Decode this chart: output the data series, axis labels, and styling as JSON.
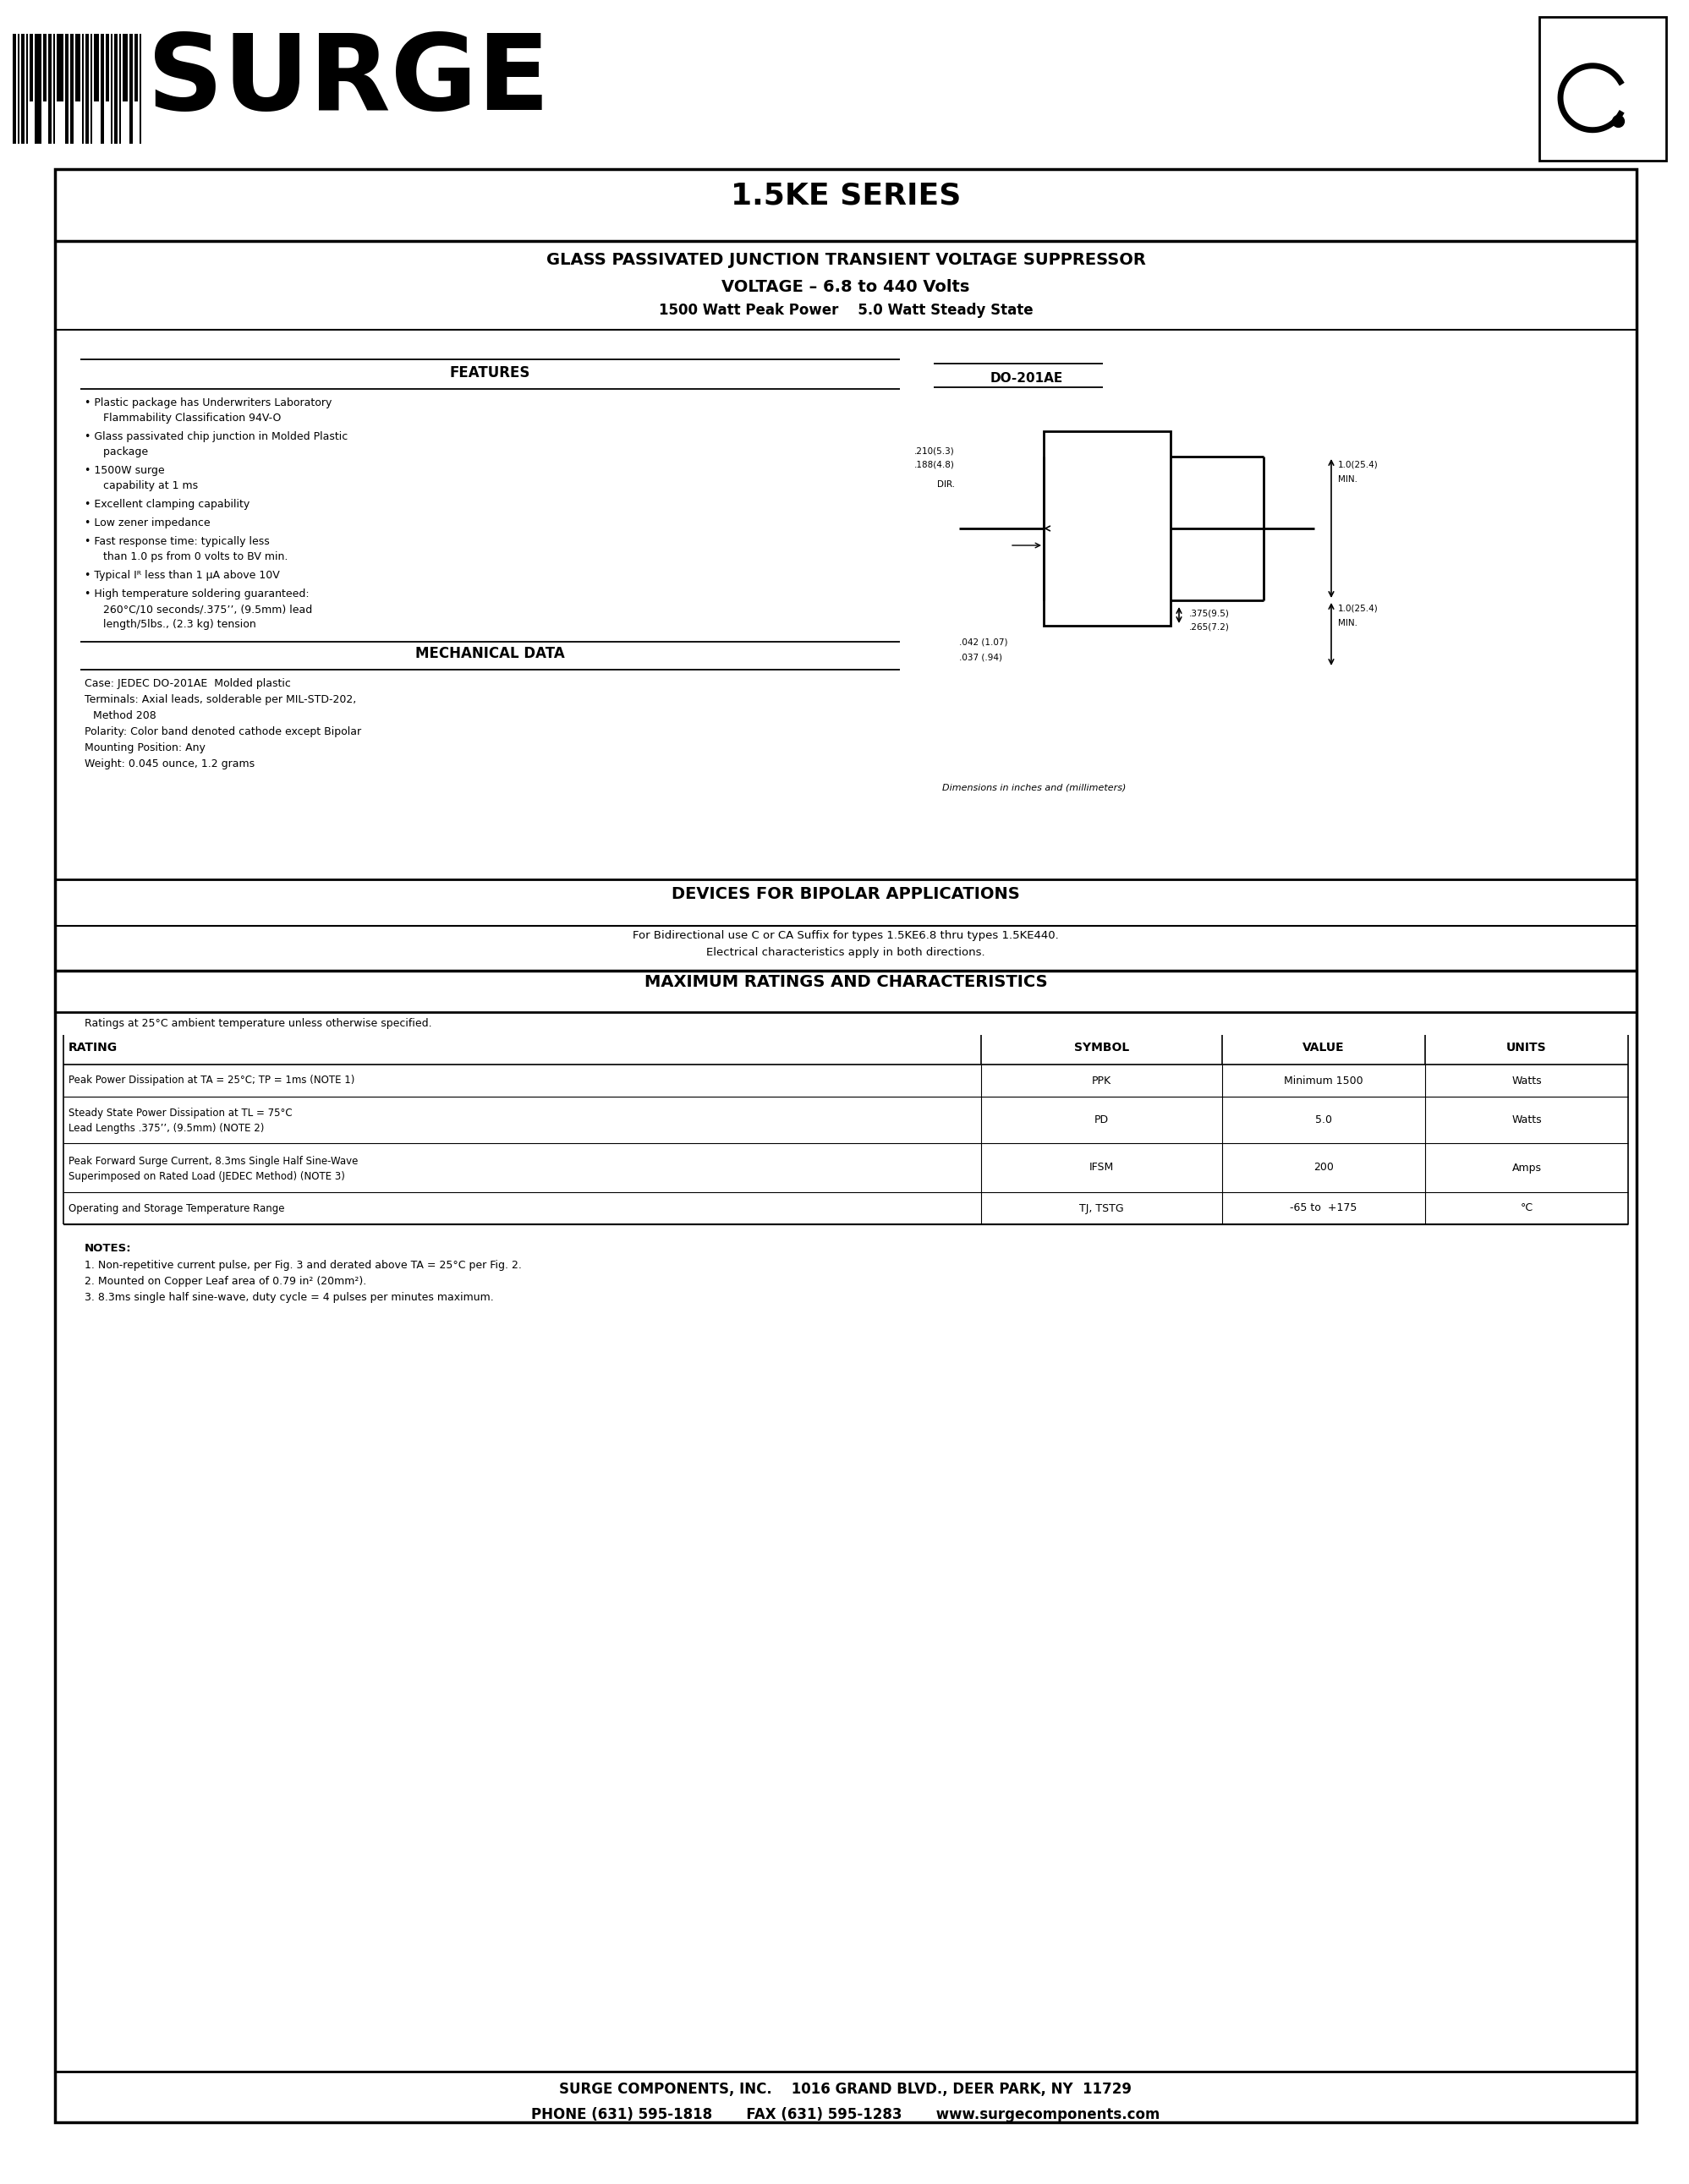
{
  "page_bg": "#ffffff",
  "title_series": "1.5KE SERIES",
  "subtitle1": "GLASS PASSIVATED JUNCTION TRANSIENT VOLTAGE SUPPRESSOR",
  "subtitle2": "VOLTAGE – 6.8 to 440 Volts",
  "subtitle3": "1500 Watt Peak Power    5.0 Watt Steady State",
  "features_title": "FEATURES",
  "features": [
    "• Plastic package has Underwriters Laboratory\n   Flammability Classification 94V-O",
    "• Glass passivated chip junction in Molded Plastic\n   package",
    "• 1500W surge\n   capability at 1 ms",
    "• Excellent clamping capability",
    "• Low zener impedance",
    "• Fast response time: typically less\n   than 1.0 ps from 0 volts to BV min.",
    "• Typical Iᴿ less than 1 μA above 10V",
    "• High temperature soldering guaranteed:\n   260°C/10 seconds/.375’’, (9.5mm) lead\n   length/5lbs., (2.3 kg) tension"
  ],
  "mech_title": "MECHANICAL DATA",
  "mech_data": [
    "Case: JEDEC DO-201AE  Molded plastic",
    "Terminals: Axial leads, solderable per MIL-STD-202,\nMethod 208",
    "Polarity: Color band denoted cathode except Bipolar",
    "Mounting Position: Any",
    "Weight: 0.045 ounce, 1.2 grams"
  ],
  "do201ae_label": "DO-201AE",
  "dim_label": "Dimensions in inches and (millimeters)",
  "dim1": ".210(5.3)",
  "dim2": ".188(4.8)",
  "dim3": "DIR.",
  "dim4": "1.0(25.4)",
  "dim5": "MIN.",
  "dim6": ".375(9.5)",
  "dim7": ".265(7.2)",
  "dim8": "1.0(25.4)",
  "dim9": "MIN.",
  "dim10": ".042 (1.07)",
  "dim11": ".037 (.94)",
  "bipolar_title": "DEVICES FOR BIPOLAR APPLICATIONS",
  "bipolar_text1": "For Bidirectional use C or CA Suffix for types 1.5KE6.8 thru types 1.5KE440.",
  "bipolar_text2": "Electrical characteristics apply in both directions.",
  "maxrat_title": "MAXIMUM RATINGS AND CHARACTERISTICS",
  "maxrat_note": "Ratings at 25°C ambient temperature unless otherwise specified.",
  "table_headers": [
    "RATING",
    "SYMBOL",
    "VALUE",
    "UNITS"
  ],
  "table_rows": [
    [
      "Peak Power Dissipation at TA = 25°C; TP = 1ms (NOTE 1)",
      "PPK",
      "Minimum 1500",
      "Watts"
    ],
    [
      "Steady State Power Dissipation at TL = 75°C\nLead Lengths .375’’, (9.5mm) (NOTE 2)",
      "PD",
      "5.0",
      "Watts"
    ],
    [
      "Peak Forward Surge Current, 8.3ms Single Half Sine-Wave\nSuperimposed on Rated Load (JEDEC Method) (NOTE 3)",
      "IFSM",
      "200",
      "Amps"
    ],
    [
      "Operating and Storage Temperature Range",
      "TJ, TSTG",
      "-65 to  +175",
      "°C"
    ]
  ],
  "table_row_labels": [
    [
      "Peak Power Dissipation at T",
      "A",
      " = 25°C; T",
      "P",
      " = 1ms (NOTE 1)"
    ],
    [
      "Steady State Power Dissipation at T",
      "L",
      " = 75°C\nLead Lengths .375’’, (9.5mm) (NOTE 2)"
    ],
    [
      "Peak Forward Surge Current, 8.3ms Single Half Sine-Wave\nSuperimposed on Rated Load (JEDEC Method) (NOTE 3)"
    ],
    [
      "Operating and Storage Temperature Range"
    ]
  ],
  "notes_title": "NOTES:",
  "notes": [
    "1. Non-repetitive current pulse, per Fig. 3 and derated above TA = 25°C per Fig. 2.",
    "2. Mounted on Copper Leaf area of 0.79 in² (20mm²).",
    "3. 8.3ms single half sine-wave, duty cycle = 4 pulses per minutes maximum."
  ],
  "footer1": "SURGE COMPONENTS, INC.    1016 GRAND BLVD., DEER PARK, NY  11729",
  "footer2": "PHONE (631) 595-1818       FAX (631) 595-1283       www.surgecomponents.com"
}
